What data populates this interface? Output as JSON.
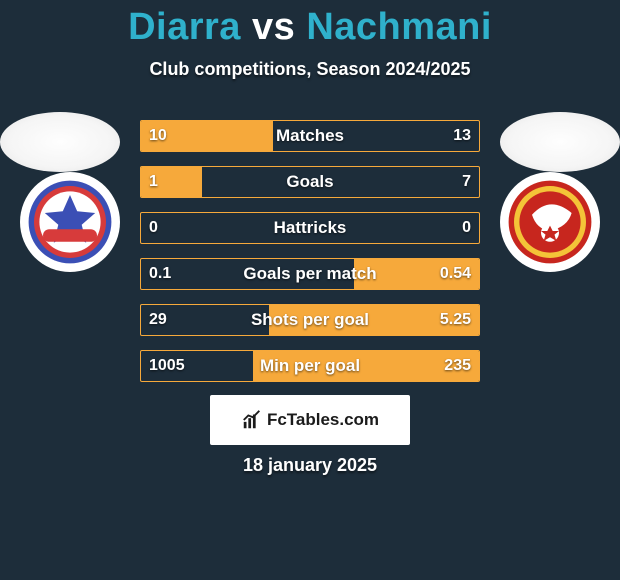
{
  "background_color": "#1d2d3a",
  "title": {
    "player1": "Diarra",
    "vs": "vs",
    "player2": "Nachmani",
    "color_players": "#2fb1cc",
    "color_vs": "#ffffff",
    "fontsize": 38
  },
  "subtitle": {
    "text": "Club competitions, Season 2024/2025",
    "color": "#ffffff",
    "fontsize": 18
  },
  "bar": {
    "border_color": "#f6a93b",
    "fill_color": "#f6a93b",
    "text_color": "#ffffff",
    "height": 32
  },
  "stats": [
    {
      "label": "Matches",
      "left_val": "10",
      "right_val": "13",
      "left_pct": 39,
      "right_pct": 0
    },
    {
      "label": "Goals",
      "left_val": "1",
      "right_val": "7",
      "left_pct": 18,
      "right_pct": 0
    },
    {
      "label": "Hattricks",
      "left_val": "0",
      "right_val": "0",
      "left_pct": 0,
      "right_pct": 0
    },
    {
      "label": "Goals per match",
      "left_val": "0.1",
      "right_val": "0.54",
      "left_pct": 0,
      "right_pct": 37
    },
    {
      "label": "Shots per goal",
      "left_val": "29",
      "right_val": "5.25",
      "left_pct": 0,
      "right_pct": 62
    },
    {
      "label": "Min per goal",
      "left_val": "1005",
      "right_val": "235",
      "left_pct": 0,
      "right_pct": 67
    }
  ],
  "brand": {
    "text": "FcTables.com",
    "icon_name": "chart-icon",
    "background": "#ffffff",
    "text_color": "#1b1b1b"
  },
  "date": {
    "text": "18 january 2025",
    "color": "#ffffff"
  },
  "badges": {
    "left": {
      "bg": "#ffffff",
      "primary": "#d73b3b",
      "secondary": "#3b4fb5"
    },
    "right": {
      "bg": "#ffffff",
      "primary": "#c7261e",
      "secondary": "#f4c338"
    }
  }
}
